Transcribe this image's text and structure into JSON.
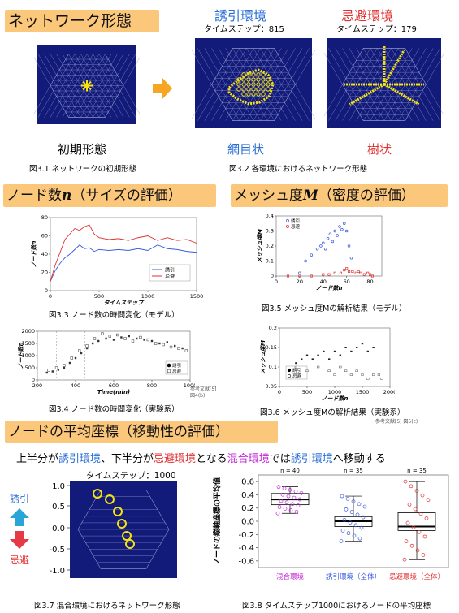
{
  "sections": {
    "network": {
      "title": "ネットワーク形態"
    },
    "nodes": {
      "title": "ノード数",
      "var": "n",
      "paren": "（サイズの評価）"
    },
    "mesh": {
      "title": "メッシュ度",
      "var": "M",
      "paren": "（密度の評価）"
    },
    "coord": {
      "title": "ノードの平均座標（移動性の評価）"
    }
  },
  "fig_top": {
    "attract_label": "誘引環境",
    "avoid_label": "忌避環境",
    "attract_step": "タイムステップ：815",
    "avoid_step": "タイムステップ：179",
    "initial_label": "初期形態",
    "mesh_label": "網目状",
    "tree_label": "樹状",
    "cap31": "図3.1 ネットワークの初期形態",
    "cap32": "図3.2 各環境におけるネットワーク形態"
  },
  "fig33": {
    "caption": "図3.3 ノード数の時間変化（モデル）",
    "chart_data": {
      "type": "line",
      "xlabel": "タイムステップ",
      "ylabel": "ノード数n",
      "xlim": [
        0,
        1500
      ],
      "ylim": [
        0,
        80
      ],
      "xticks": [
        0,
        500,
        1000,
        1500
      ],
      "yticks": [
        0,
        20,
        40,
        60,
        80
      ],
      "legend_position": "bottom-right",
      "series": [
        {
          "name": "誘引",
          "color": "#3b5bdb",
          "x": [
            0,
            50,
            100,
            150,
            200,
            250,
            300,
            350,
            400,
            450,
            500,
            600,
            700,
            800,
            900,
            1000,
            1100,
            1200,
            1300,
            1400,
            1500
          ],
          "y": [
            10,
            22,
            30,
            36,
            40,
            45,
            50,
            46,
            47,
            43,
            45,
            44,
            45,
            44,
            46,
            44,
            50,
            46,
            45,
            43,
            42
          ]
        },
        {
          "name": "忌避",
          "color": "#e03131",
          "x": [
            0,
            50,
            100,
            150,
            200,
            250,
            300,
            350,
            400,
            450,
            500,
            600,
            700,
            800,
            900,
            1000,
            1100,
            1200,
            1300,
            1400,
            1500
          ],
          "y": [
            10,
            28,
            42,
            56,
            62,
            68,
            66,
            70,
            72,
            62,
            58,
            56,
            57,
            55,
            58,
            60,
            55,
            58,
            55,
            56,
            52
          ]
        }
      ]
    }
  },
  "fig34": {
    "caption": "図3.4 ノード数の時間変化（実験系）",
    "ref": "参考文献[5]",
    "ref2": "図4(b)",
    "chart_data": {
      "type": "scatter",
      "xlabel": "Time(min)",
      "ylabel": "ノード数n",
      "xlim": [
        200,
        1000
      ],
      "ylim": [
        0,
        2000
      ],
      "xticks": [
        200,
        400,
        600,
        800,
        1000
      ],
      "yticks": [
        0,
        500,
        1000,
        1500,
        2000
      ],
      "legend_position": "bottom-right",
      "series": [
        {
          "name": "誘引",
          "marker": "filled",
          "x": [
            250,
            280,
            310,
            340,
            370,
            400,
            430,
            460,
            490,
            520,
            560,
            600,
            640,
            680,
            720,
            760,
            800,
            840,
            880,
            920,
            960
          ],
          "y": [
            300,
            350,
            420,
            500,
            700,
            900,
            1100,
            1300,
            1500,
            1600,
            1700,
            1650,
            1750,
            1800,
            1700,
            1650,
            1600,
            1500,
            1550,
            1400,
            1300
          ]
        },
        {
          "name": "忌避",
          "marker": "open",
          "x": [
            260,
            300,
            340,
            380,
            420,
            460,
            500,
            540,
            580,
            620,
            660,
            700,
            740,
            780,
            820,
            860,
            900,
            940,
            980
          ],
          "y": [
            400,
            500,
            600,
            900,
            1200,
            1400,
            1700,
            1900,
            1800,
            1850,
            1700,
            1600,
            1750,
            1650,
            1500,
            1450,
            1350,
            1300,
            1200
          ]
        }
      ]
    }
  },
  "fig35": {
    "caption": "図3.5 メッシュ度Mの解析結果（モデル）",
    "chart_data": {
      "type": "scatter",
      "xlabel": "ノード数n",
      "ylabel": "メッシュ度M",
      "xlim": [
        0,
        90
      ],
      "ylim": [
        0,
        0.4
      ],
      "xticks": [
        0,
        20,
        40,
        60,
        80
      ],
      "yticks": [
        0,
        0.1,
        0.2,
        0.3,
        0.4
      ],
      "legend_position": "top-left",
      "series": [
        {
          "name": "誘引",
          "color": "#3b5bdb",
          "x": [
            20,
            25,
            30,
            35,
            38,
            40,
            42,
            44,
            46,
            48,
            50,
            52,
            54,
            56,
            58,
            60,
            62,
            64
          ],
          "y": [
            0.02,
            0.1,
            0.14,
            0.18,
            0.2,
            0.22,
            0.18,
            0.25,
            0.28,
            0.23,
            0.3,
            0.27,
            0.33,
            0.31,
            0.35,
            0.3,
            0.2,
            0.12
          ]
        },
        {
          "name": "忌避",
          "color": "#e03131",
          "x": [
            10,
            20,
            30,
            40,
            45,
            50,
            55,
            58,
            60,
            62,
            65,
            68,
            70,
            72,
            75,
            78,
            80,
            82
          ],
          "y": [
            0,
            0,
            0,
            0.01,
            0.01,
            0.02,
            0.02,
            0.04,
            0.05,
            0.03,
            0.03,
            0.02,
            0.03,
            0.02,
            0.01,
            0.02,
            0.01,
            0
          ]
        }
      ]
    }
  },
  "fig36": {
    "caption": "図3.6 メッシュ度Mの解析結果（実験系）",
    "ref": "参考文献[5] 図5(c)",
    "chart_data": {
      "type": "scatter",
      "xlabel": "ノード数n",
      "ylabel": "メッシュ度M",
      "xlim": [
        0,
        2000
      ],
      "ylim": [
        0.05,
        0.2
      ],
      "xticks": [
        0,
        500,
        1000,
        1500,
        2000
      ],
      "yticks": [
        0.05,
        0.1,
        0.15,
        0.2
      ],
      "legend_position": "bottom-left",
      "series": [
        {
          "name": "誘引",
          "marker": "filled",
          "x": [
            300,
            400,
            500,
            600,
            700,
            800,
            900,
            1000,
            1100,
            1200,
            1300,
            1400,
            1500,
            1600,
            1700
          ],
          "y": [
            0.11,
            0.12,
            0.13,
            0.12,
            0.13,
            0.14,
            0.12,
            0.14,
            0.13,
            0.15,
            0.14,
            0.15,
            0.16,
            0.14,
            0.15
          ]
        },
        {
          "name": "忌避",
          "marker": "open",
          "x": [
            300,
            500,
            700,
            900,
            1000,
            1100,
            1200,
            1300,
            1400,
            1500,
            1600,
            1700,
            1800,
            1850
          ],
          "y": [
            0.1,
            0.09,
            0.1,
            0.09,
            0.08,
            0.1,
            0.09,
            0.08,
            0.09,
            0.08,
            0.07,
            0.08,
            0.08,
            0.07
          ]
        }
      ]
    }
  },
  "coord": {
    "statement": {
      "p1": "上半分が",
      "attract": "誘引環境",
      "p2": "、下半分が",
      "avoid": "忌避環境",
      "p3": "となる",
      "mixed": "混合環境",
      "p4": "では",
      "attract2": "誘引環境",
      "p5": "へ移動する"
    },
    "fig37": {
      "step": "タイムステップ：1000",
      "caption": "図3.7 混合環境におけるネットワーク形態",
      "attract_label": "誘引",
      "avoid_label": "忌避",
      "yticks": [
        "1.0",
        "0.5",
        "0.0",
        "-0.5",
        "-1.0"
      ]
    },
    "fig38": {
      "caption": "図3.8 タイムステップ1000におけるノードの平均座標",
      "chart_data": {
        "type": "box",
        "ylabel": "ノードの縦軸座標の平均値",
        "ylim": [
          -0.7,
          0.7
        ],
        "yticks": [
          -0.6,
          -0.4,
          -0.2,
          0.0,
          0.2,
          0.4,
          0.6
        ],
        "categories": [
          "混合環境",
          "誘引環境（全体）",
          "忌避環境（全体）"
        ],
        "category_colors": [
          "#c026d3",
          "#3b5bdb",
          "#e03131"
        ],
        "counts": [
          "n = 40",
          "n = 35",
          "n = 35"
        ],
        "boxes": [
          {
            "min": 0.12,
            "q1": 0.25,
            "median": 0.33,
            "q3": 0.42,
            "max": 0.52
          },
          {
            "min": -0.3,
            "q1": -0.08,
            "median": 0.0,
            "q3": 0.07,
            "max": 0.38
          },
          {
            "min": -0.58,
            "q1": -0.14,
            "median": -0.08,
            "q3": 0.13,
            "max": 0.6
          }
        ]
      }
    }
  }
}
